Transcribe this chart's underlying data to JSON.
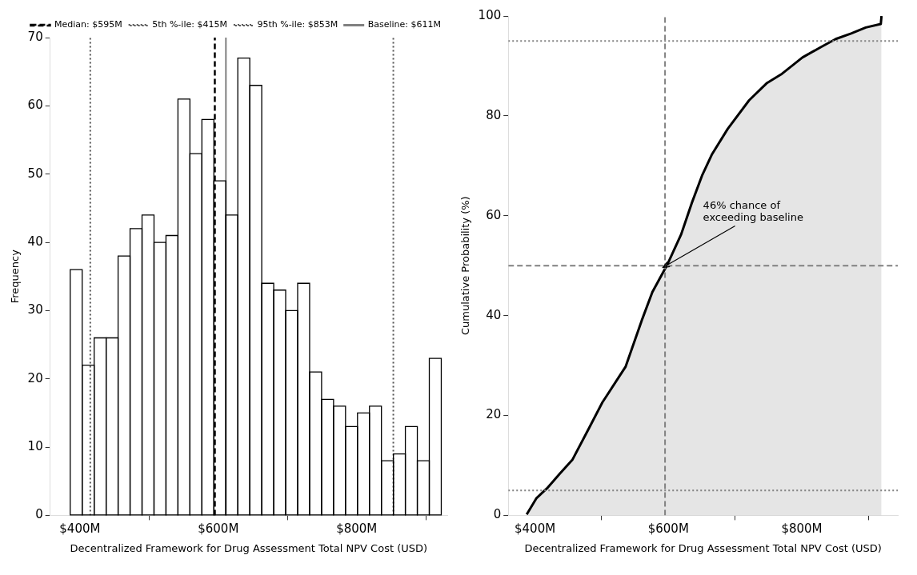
{
  "chart_data": [
    {
      "type": "histogram",
      "xlabel": "Decentralized Framework for Drug Assessment Total NPV Cost (USD)",
      "ylabel": "Frequency",
      "bins": [
        386,
        403.3,
        420.6,
        437.9,
        455.2,
        472.5,
        489.8,
        507.1,
        524.4,
        541.7,
        559,
        576.3,
        593.6,
        610.9,
        628.2,
        645.5,
        662.8,
        680.1,
        697.4,
        714.7,
        732,
        749.3,
        766.6,
        783.9,
        801.2,
        818.5,
        835.8,
        853.1,
        870.4,
        887.7,
        905,
        922.3
      ],
      "values": [
        36,
        22,
        26,
        26,
        38,
        42,
        44,
        40,
        41,
        61,
        53,
        58,
        49,
        44,
        67,
        63,
        34,
        33,
        30,
        34,
        21,
        17,
        16,
        13,
        15,
        16,
        8,
        9,
        13,
        8,
        23
      ],
      "color": "#ffffff",
      "xlim": [
        357,
        931
      ],
      "xticks": [
        {
          "value": 400,
          "label": "$400M"
        },
        {
          "value": 600,
          "label": "$600M"
        },
        {
          "value": 800,
          "label": "$800M"
        }
      ],
      "ylim": [
        0,
        70
      ],
      "yticks": [
        0,
        10,
        20,
        30,
        40,
        50,
        60,
        70
      ],
      "ref_lines": [
        {
          "axis": "x",
          "value": 595,
          "label": "Median: $595M",
          "color": "#000000",
          "line_style": "dashed"
        },
        {
          "axis": "x",
          "value": 415,
          "label": "5th %-ile: $415M",
          "color": "#555555",
          "line_style": "dotted"
        },
        {
          "axis": "x",
          "value": 853,
          "label": "95th %-ile: $853M",
          "color": "#555555",
          "line_style": "dotted"
        },
        {
          "axis": "x",
          "value": 611,
          "label": "Baseline: $611M",
          "color": "#808080",
          "line_style": "solid"
        }
      ],
      "legend": "top right"
    },
    {
      "type": "area",
      "xlabel": "Decentralized Framework for Drug Assessment Total NPV Cost (USD)",
      "ylabel": "Cumulative Probability (%)",
      "series": [
        {
          "color": "#000000",
          "x": [
            387.6,
            402,
            418,
            437,
            456,
            480,
            501,
            536,
            560,
            576,
            598,
            619,
            635,
            651,
            665,
            689,
            721,
            748,
            769,
            801,
            829,
            851,
            874,
            896,
            918.5,
            919.6
          ],
          "values": [
            0.2,
            3.4,
            5.4,
            8.3,
            11.1,
            17.2,
            22.6,
            29.8,
            39,
            44.7,
            50.1,
            56.2,
            62.5,
            68.2,
            72.2,
            77.4,
            83.1,
            86.6,
            88.3,
            91.7,
            93.8,
            95.4,
            96.5,
            97.7,
            98.4,
            100
          ]
        }
      ],
      "xlim": [
        360,
        944
      ],
      "xticks": [
        {
          "value": 400,
          "label": "$400M"
        },
        {
          "value": 600,
          "label": "$600M"
        },
        {
          "value": 800,
          "label": "$800M"
        }
      ],
      "ylim": [
        0,
        100
      ],
      "yticks": [
        0,
        20,
        40,
        60,
        80,
        100
      ],
      "ref_lines": [
        {
          "axis": "y",
          "value": 50,
          "color": "#808080",
          "line_style": "dashed"
        },
        {
          "axis": "x",
          "value": 595,
          "color": "#808080",
          "line_style": "dashed"
        },
        {
          "axis": "y",
          "value": 5,
          "color": "#808080",
          "line_style": "dotted"
        },
        {
          "axis": "y",
          "value": 95,
          "color": "#808080",
          "line_style": "dotted"
        }
      ],
      "annotations": [
        {
          "text": "46% chance of exceeding baseline",
          "x": 598,
          "y": 50.1
        }
      ]
    }
  ]
}
